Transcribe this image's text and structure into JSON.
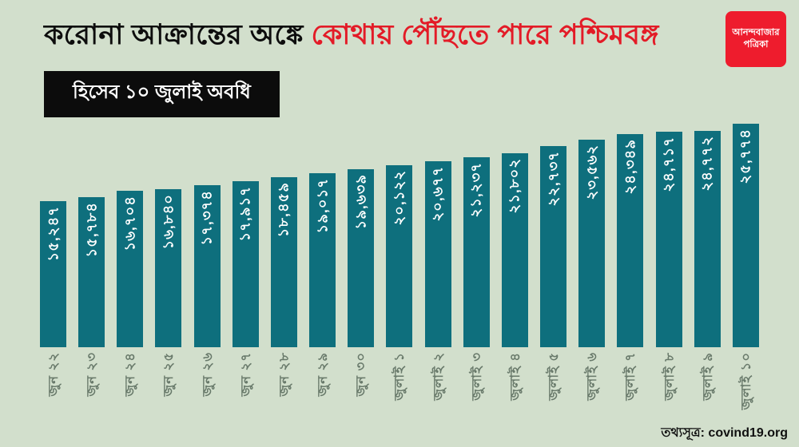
{
  "header": {
    "title_black": "করোনা আক্রান্তের অঙ্কে ",
    "title_red": "কোথায় পৌঁছতে পারে পশ্চিমবঙ্গ",
    "subtitle": "হিসেব ১০ জুলাই অবধি"
  },
  "logo": {
    "line1": "আনন্দবাজার",
    "line2": "পত্রিকা"
  },
  "footer": {
    "source_text": "তথ্যসূত্র: covind19.org"
  },
  "colors": {
    "background": "#d2dfcc",
    "bar": "#0e6f7d",
    "accent_red": "#e31b27",
    "logo_red": "#ee1c2d",
    "subtitle_bg": "#0c0c0c",
    "axis_label": "#68796a",
    "bar_value_text": "#ffffff"
  },
  "chart_data": {
    "type": "bar",
    "title": "করোনা আক্রান্তের অঙ্কে কোথায় পৌঁছতে পারে পশ্চিমবঙ্গ",
    "subtitle": "হিসেব ১০ জুলাই অবধি",
    "source": "তথ্যসূত্র: covind19.org",
    "xlabel": "",
    "ylabel": "",
    "grid": false,
    "legend_position": "none",
    "ylim": [
      0,
      26000
    ],
    "categories": [
      "জুন ২২",
      "জুন ২৩",
      "জুন ২৪",
      "জুন ২৫",
      "জুন ২৬",
      "জুন ২৭",
      "জুন ২৮",
      "জুন ২৯",
      "জুন ৩০",
      "জুলাই ১",
      "জুলাই ২",
      "জুলাই ৩",
      "জুলাই ৪",
      "জুলাই ৫",
      "জুলাই ৬",
      "জুলাই ৭",
      "জুলাই ৮",
      "জুলাই ৯",
      "জুলাই ১০"
    ],
    "categories_en": [
      "Jun 22",
      "Jun 23",
      "Jun 24",
      "Jun 25",
      "Jun 26",
      "Jun 27",
      "Jun 28",
      "Jun 29",
      "Jun 30",
      "Jul 1",
      "Jul 2",
      "Jul 3",
      "Jul 4",
      "Jul 5",
      "Jul 6",
      "Jul 7",
      "Jul 8",
      "Jul 9",
      "Jul 10"
    ],
    "values": [
      15247,
      15784,
      16704,
      16840,
      17374,
      17917,
      18459,
      19017,
      19639,
      20122,
      20677,
      21237,
      21802,
      22737,
      23562,
      24349,
      24717,
      24772,
      25774
    ],
    "value_labels": [
      "১৫,২৪৭",
      "১৫,৭৮৪",
      "১৬,৭০৪",
      "১৬,৮৪০",
      "১৭,৩৭৪",
      "১৭,৯১৭",
      "১৮,৪৫৯",
      "১৯,০১৭",
      "১৯,৬৩৯",
      "২০,১২২",
      "২০,৬৭৭",
      "২১,২৩৭",
      "২১,৮০২",
      "২২,৭৩৭",
      "২৩,৫৬২",
      "২৪,৩৪৯",
      "২৪,৭১৭",
      "২৪,৭৭২",
      "২৫,৭৭৪"
    ]
  }
}
